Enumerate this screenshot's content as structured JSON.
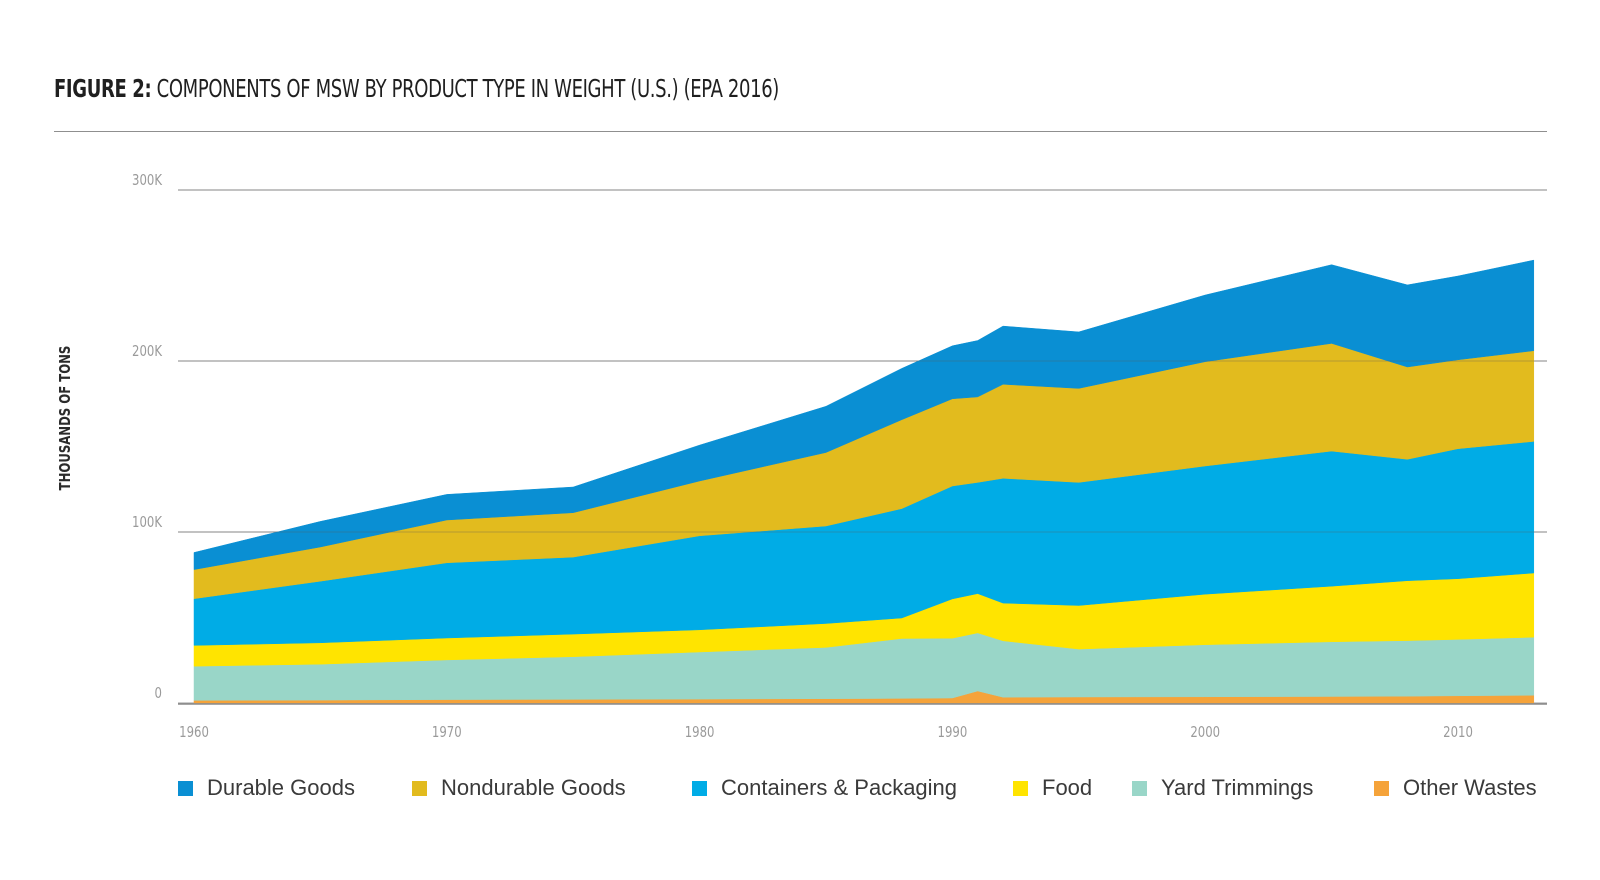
{
  "header": {
    "title_bold": "FIGURE 2:",
    "title_rest": " COMPONENTS OF MSW BY PRODUCT TYPE IN WEIGHT (U.S.) (EPA 2016)"
  },
  "chart_data": {
    "type": "area",
    "stacked": true,
    "title": "FIGURE 2: COMPONENTS OF MSW BY PRODUCT TYPE IN WEIGHT (U.S.) (EPA 2016)",
    "xlabel": "",
    "ylabel": "THOUSANDS OF TONS",
    "xlim": [
      1960,
      2014
    ],
    "ylim": [
      0,
      300000
    ],
    "x_ticks": [
      1960,
      1970,
      1980,
      1990,
      2000,
      2010
    ],
    "x_tick_labels": [
      "1960",
      "1970",
      "1980",
      "1990",
      "2000",
      "2010"
    ],
    "y_ticks": [
      0,
      100000,
      200000,
      300000
    ],
    "y_tick_labels": [
      "0",
      "100K",
      "200K",
      "300K"
    ],
    "grid": true,
    "legend_position": "bottom",
    "x": [
      1960,
      1965,
      1970,
      1975,
      1980,
      1985,
      1988,
      1990,
      1991,
      1992,
      1995,
      2000,
      2005,
      2008,
      2010,
      2013
    ],
    "series": [
      {
        "name": "Other Wastes",
        "color": "#f5a33a",
        "values": [
          1500,
          1700,
          2000,
          2100,
          2300,
          2500,
          2700,
          2900,
          7000,
          3400,
          3500,
          3600,
          3800,
          4000,
          4200,
          4500
        ]
      },
      {
        "name": "Yard Trimmings",
        "color": "#99d6c8",
        "values": [
          20000,
          21000,
          23200,
          25000,
          27500,
          30000,
          35000,
          35000,
          34000,
          33000,
          28000,
          30500,
          32000,
          32500,
          33000,
          34000
        ]
      },
      {
        "name": "Food",
        "color": "#ffe400",
        "values": [
          12200,
          12500,
          12800,
          13200,
          13000,
          14000,
          12000,
          23000,
          23000,
          22000,
          25500,
          29500,
          32500,
          35000,
          35500,
          37500
        ]
      },
      {
        "name": "Containers & Packaging",
        "color": "#00ace6",
        "values": [
          27300,
          36000,
          44000,
          45000,
          55000,
          57000,
          64000,
          66000,
          65000,
          73000,
          72000,
          75000,
          79000,
          71000,
          76000,
          77000
        ]
      },
      {
        "name": "Nondurable Goods",
        "color": "#e2bb1e",
        "values": [
          17000,
          20000,
          25000,
          26000,
          32000,
          43000,
          52000,
          51000,
          50000,
          55000,
          55000,
          61000,
          63000,
          54000,
          52000,
          53000
        ]
      },
      {
        "name": "Durable Goods",
        "color": "#0a8fd3",
        "values": [
          10000,
          15000,
          15000,
          15000,
          21000,
          27000,
          30000,
          31000,
          33000,
          34000,
          33000,
          39000,
          46000,
          48000,
          49000,
          53000
        ]
      }
    ]
  },
  "legend": [
    {
      "label": "Durable Goods",
      "color": "#0a8fd3"
    },
    {
      "label": "Nondurable Goods",
      "color": "#e2bb1e"
    },
    {
      "label": "Containers & Packaging",
      "color": "#00ace6"
    },
    {
      "label": "Food",
      "color": "#ffe400"
    },
    {
      "label": "Yard Trimmings",
      "color": "#99d6c8"
    },
    {
      "label": "Other Wastes",
      "color": "#f5a33a"
    }
  ]
}
